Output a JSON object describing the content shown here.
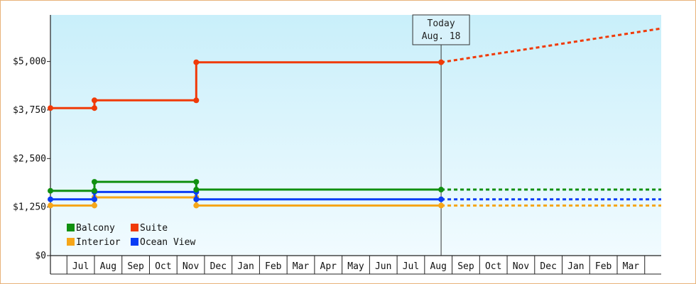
{
  "chart_data": {
    "type": "line",
    "title": "",
    "xlabel": "",
    "ylabel": "",
    "ylim": [
      0,
      6200
    ],
    "yticks": [
      {
        "value": 0,
        "label": "$0"
      },
      {
        "value": 1250,
        "label": "$1,250"
      },
      {
        "value": 2500,
        "label": "$2,500"
      },
      {
        "value": 3750,
        "label": "$3,750"
      },
      {
        "value": 5000,
        "label": "$5,000"
      }
    ],
    "x_range": [
      0,
      22.2
    ],
    "months": [
      {
        "label": "",
        "start": 0.0,
        "end": 0.6
      },
      {
        "label": "Jul",
        "start": 0.6,
        "end": 1.6
      },
      {
        "label": "Aug",
        "start": 1.6,
        "end": 2.6
      },
      {
        "label": "Sep",
        "start": 2.6,
        "end": 3.6
      },
      {
        "label": "Oct",
        "start": 3.6,
        "end": 4.6
      },
      {
        "label": "Nov",
        "start": 4.6,
        "end": 5.6
      },
      {
        "label": "Dec",
        "start": 5.6,
        "end": 6.6
      },
      {
        "label": "Jan",
        "start": 6.6,
        "end": 7.6
      },
      {
        "label": "Feb",
        "start": 7.6,
        "end": 8.6
      },
      {
        "label": "Mar",
        "start": 8.6,
        "end": 9.6
      },
      {
        "label": "Apr",
        "start": 9.6,
        "end": 10.6
      },
      {
        "label": "May",
        "start": 10.6,
        "end": 11.6
      },
      {
        "label": "Jun",
        "start": 11.6,
        "end": 12.6
      },
      {
        "label": "Jul",
        "start": 12.6,
        "end": 13.6
      },
      {
        "label": "Aug",
        "start": 13.6,
        "end": 14.6
      },
      {
        "label": "Sep",
        "start": 14.6,
        "end": 15.6
      },
      {
        "label": "Oct",
        "start": 15.6,
        "end": 16.6
      },
      {
        "label": "Nov",
        "start": 16.6,
        "end": 17.6
      },
      {
        "label": "Dec",
        "start": 17.6,
        "end": 18.6
      },
      {
        "label": "Jan",
        "start": 18.6,
        "end": 19.6
      },
      {
        "label": "Feb",
        "start": 19.6,
        "end": 20.6
      },
      {
        "label": "Mar",
        "start": 20.6,
        "end": 21.6
      },
      {
        "label": "",
        "start": 21.6,
        "end": 22.2
      }
    ],
    "today": {
      "x": 14.2,
      "line1": "Today",
      "line2": "Aug. 18"
    },
    "grid": false,
    "legend_position": "bottom-left",
    "series": [
      {
        "name": "Balcony",
        "color": "#109010",
        "points": [
          [
            0.0,
            1670
          ],
          [
            1.6,
            1670
          ],
          [
            1.6,
            1900
          ],
          [
            5.3,
            1900
          ],
          [
            5.3,
            1700
          ],
          [
            14.2,
            1700
          ]
        ],
        "projection": [
          [
            14.2,
            1700
          ],
          [
            22.2,
            1700
          ]
        ]
      },
      {
        "name": "Suite",
        "color": "#f03a08",
        "points": [
          [
            0.0,
            3800
          ],
          [
            1.6,
            3800
          ],
          [
            1.6,
            4000
          ],
          [
            5.3,
            4000
          ],
          [
            5.3,
            4980
          ],
          [
            14.2,
            4980
          ]
        ],
        "projection": [
          [
            14.2,
            4980
          ],
          [
            22.2,
            5850
          ]
        ]
      },
      {
        "name": "Interior",
        "color": "#f6a619",
        "points": [
          [
            0.0,
            1290
          ],
          [
            1.6,
            1290
          ],
          [
            1.6,
            1500
          ],
          [
            5.3,
            1500
          ],
          [
            5.3,
            1290
          ],
          [
            14.2,
            1290
          ]
        ],
        "projection": [
          [
            14.2,
            1290
          ],
          [
            22.2,
            1290
          ]
        ]
      },
      {
        "name": "Ocean View",
        "color": "#0a3cf5",
        "points": [
          [
            0.0,
            1450
          ],
          [
            1.6,
            1450
          ],
          [
            1.6,
            1640
          ],
          [
            5.3,
            1640
          ],
          [
            5.3,
            1450
          ],
          [
            14.2,
            1450
          ]
        ],
        "projection": [
          [
            14.2,
            1450
          ],
          [
            22.2,
            1450
          ]
        ]
      }
    ]
  }
}
